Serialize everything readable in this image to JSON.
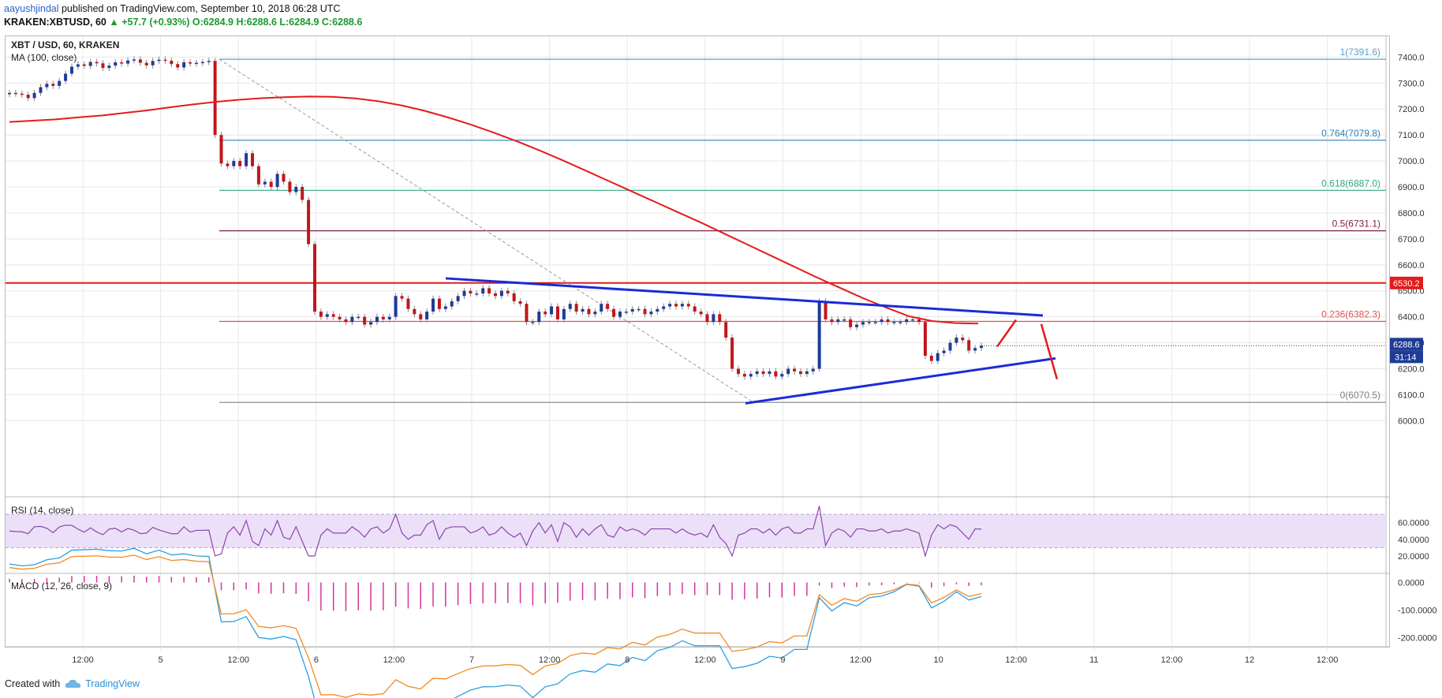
{
  "header": {
    "author": "aayushjindal",
    "published_text": "published on TradingView.com, September 10, 2018 06:28 UTC",
    "symbol": "KRAKEN:XBTUSD, 60",
    "change": "+57.7 (+0.93%)",
    "ohlc": "O:6284.9 H:6288.6 L:6284.9 C:6288.6",
    "change_arrow": "▲"
  },
  "footer": {
    "created_with": "Created with",
    "brand": "TradingView"
  },
  "panels": {
    "price_title": "XBT / USD, 60, KRAKEN",
    "ma_label": "MA (100, close)",
    "rsi_label": "RSI (14, close)",
    "macd_label": "MACD (12, 26, close, 9)"
  },
  "chart_data": {
    "type": "candlestick",
    "title": "XBT / USD, 60, KRAKEN",
    "price_axis": {
      "ylim": [
        6000,
        7480
      ],
      "ticks": [
        "7400.0",
        "7300.0",
        "7200.0",
        "7100.0",
        "7000.0",
        "6900.0",
        "6800.0",
        "6700.0",
        "6600.0",
        "6500.0",
        "6400.0",
        "6300.0",
        "6200.0",
        "6100.0",
        "6000.0"
      ]
    },
    "x_tick_labels": [
      "12:00",
      "5",
      "12:00",
      "6",
      "12:00",
      "7",
      "12:00",
      "8",
      "12:00",
      "9",
      "12:00",
      "10",
      "12:00",
      "11",
      "12:00",
      "12",
      "12:00"
    ],
    "fib_levels": [
      {
        "label": "1(7391.6)",
        "value": 7391.6,
        "color": "#5aa0d0"
      },
      {
        "label": "0.764(7079.8)",
        "value": 7079.8,
        "color": "#2a80b9"
      },
      {
        "label": "0.618(6887.0)",
        "value": 6887.0,
        "color": "#2fa87a"
      },
      {
        "label": "0.5(6731.1)",
        "value": 6731.1,
        "color": "#7b2244"
      },
      {
        "label": "0.236(6382.3)",
        "value": 6382.3,
        "color": "#e05050"
      },
      {
        "label": "0(6070.5)",
        "value": 6070.5,
        "color": "#808080"
      }
    ],
    "horizontal_line": {
      "value": 6530.2,
      "label": "6530.2",
      "color": "#e41b1b"
    },
    "last_price": {
      "value": 6288.6,
      "label": "6288.6",
      "countdown": "31:14",
      "color": "#1e3c96"
    },
    "candles_close": [
      7262,
      7259,
      7255,
      7242,
      7262,
      7284,
      7297,
      7289,
      7308,
      7336,
      7363,
      7372,
      7366,
      7381,
      7376,
      7358,
      7367,
      7380,
      7375,
      7387,
      7391,
      7378,
      7368,
      7385,
      7390,
      7386,
      7373,
      7360,
      7380,
      7375,
      7378,
      7381,
      7385,
      7100,
      6990,
      6980,
      7000,
      6980,
      7030,
      6980,
      6910,
      6920,
      6900,
      6950,
      6920,
      6880,
      6900,
      6850,
      6680,
      6420,
      6400,
      6410,
      6400,
      6390,
      6380,
      6400,
      6400,
      6370,
      6380,
      6400,
      6390,
      6400,
      6480,
      6470,
      6430,
      6410,
      6390,
      6420,
      6470,
      6430,
      6440,
      6460,
      6480,
      6500,
      6490,
      6490,
      6510,
      6490,
      6480,
      6500,
      6490,
      6460,
      6450,
      6380,
      6380,
      6420,
      6410,
      6440,
      6390,
      6430,
      6450,
      6420,
      6430,
      6410,
      6420,
      6450,
      6430,
      6400,
      6420,
      6420,
      6430,
      6430,
      6410,
      6420,
      6430,
      6440,
      6450,
      6440,
      6450,
      6440,
      6420,
      6410,
      6380,
      6410,
      6380,
      6320,
      6200,
      6180,
      6170,
      6180,
      6190,
      6180,
      6190,
      6170,
      6180,
      6200,
      6190,
      6180,
      6190,
      6200,
      6460,
      6390,
      6380,
      6390,
      6390,
      6360,
      6370,
      6380,
      6380,
      6380,
      6390,
      6380,
      6380,
      6380,
      6390,
      6390,
      6380,
      6250,
      6230,
      6260,
      6270,
      6300,
      6320,
      6310,
      6270,
      6280,
      6289
    ],
    "ma100": [
      7150,
      7155,
      7160,
      7168,
      7175,
      7185,
      7195,
      7207,
      7218,
      7228,
      7236,
      7242,
      7246,
      7248,
      7247,
      7241,
      7230,
      7214,
      7193,
      7168,
      7140,
      7109,
      7076,
      7040,
      7002,
      6962,
      6922,
      6882,
      6842,
      6802,
      6762,
      6720,
      6678,
      6636,
      6594,
      6552,
      6512,
      6472,
      6436,
      6402,
      6384,
      6376,
      6374
    ],
    "rsi": {
      "label": "RSI (14, close)",
      "ylim": [
        0,
        90
      ],
      "ticks": [
        "60.0000",
        "40.0000",
        "20.0000"
      ],
      "bands": [
        30,
        70
      ]
    },
    "macd": {
      "label": "MACD (12, 26, close, 9)",
      "ticks": [
        "0.0000",
        "-100.0000",
        "-200.0000"
      ]
    },
    "trendlines": [
      {
        "name": "upper",
        "color": "#1a2bd8"
      },
      {
        "name": "lower",
        "color": "#1a2bd8"
      }
    ]
  }
}
